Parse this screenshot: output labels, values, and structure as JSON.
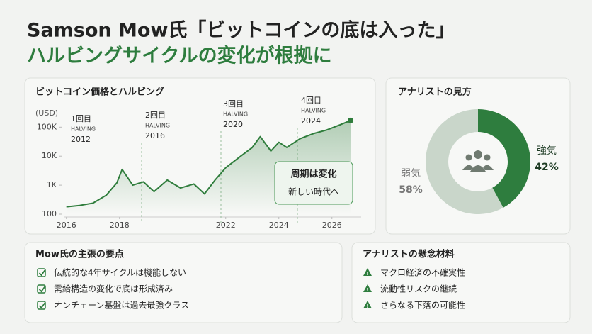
{
  "header": {
    "title_line1": "Samson Mow氏「ビットコインの底は入った」",
    "title_line2": "ハルビングサイクルの変化が根拠に"
  },
  "chart_data": [
    {
      "type": "line",
      "title": "ビットコイン価格とハルビング",
      "y_unit": "(USD)",
      "log_scale": true,
      "x": [
        2016.0,
        2016.5,
        2017.0,
        2017.5,
        2017.9,
        2018.1,
        2018.5,
        2018.9,
        2019.3,
        2019.8,
        2020.3,
        2020.8,
        2021.2,
        2021.6,
        2022.0,
        2022.5,
        2023.0,
        2023.3,
        2023.7,
        2024.0,
        2024.3,
        2024.8,
        2025.3,
        2025.8,
        2026.3,
        2026.7
      ],
      "values": [
        180,
        200,
        240,
        450,
        1200,
        3500,
        1000,
        1300,
        600,
        1500,
        800,
        1100,
        500,
        1500,
        4000,
        9000,
        20000,
        47000,
        15000,
        30000,
        20000,
        40000,
        60000,
        80000,
        120000,
        170000
      ],
      "color": "#2f7d3c",
      "xlim": [
        2015.9,
        2027.1
      ],
      "xticks": [
        2016,
        2018,
        2022,
        2024,
        2026
      ],
      "ylim": [
        100,
        200000
      ],
      "yticks": [
        100,
        {
          "value": 1000,
          "label": "1K"
        },
        {
          "value": 10000,
          "label": "10K"
        },
        {
          "value": 100000,
          "label": "100K"
        }
      ],
      "annotations": [
        {
          "text": "1回目",
          "event": "HALVING",
          "year": "2012"
        },
        {
          "text": "2回目",
          "event": "HALVING",
          "year": "2016"
        },
        {
          "text": "3回目",
          "event": "HALVING",
          "year": "2020"
        },
        {
          "text": "4回目",
          "event": "HALVING",
          "year": "2024"
        }
      ],
      "callout": [
        "周期は変化",
        "新しい時代へ"
      ]
    },
    {
      "type": "pie",
      "title": "アナリストの見方",
      "donut": true,
      "categories": [
        "強気",
        "弱気"
      ],
      "values": [
        42,
        58
      ],
      "value_labels": [
        "42%",
        "58%"
      ],
      "colors": [
        "#2e7d3e",
        "#c9d6ca"
      ]
    }
  ],
  "panels": [
    {
      "title": "Mow氏の主張の要点",
      "items": [
        "伝統的な4年サイクルは機能しない",
        "需給構造の変化で底は形成済み",
        "オンチェーン基盤は過去最強クラス"
      ]
    },
    {
      "title": "アナリストの懸念材料",
      "items": [
        "マクロ経済の不確実性",
        "流動性リスクの継続",
        "さらなる下落の可能性"
      ]
    }
  ]
}
